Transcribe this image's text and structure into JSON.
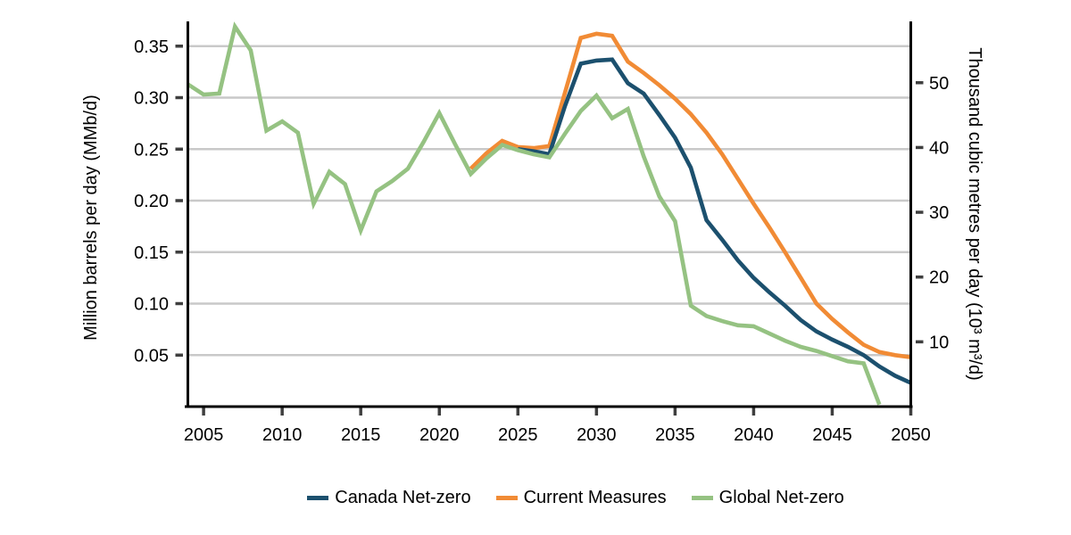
{
  "chart_data": {
    "type": "line",
    "title": "",
    "grid": "horizontal",
    "legend_position": "bottom",
    "x_axis": {
      "range": [
        2004,
        2050
      ],
      "tick_values": [
        2005,
        2010,
        2015,
        2020,
        2025,
        2030,
        2035,
        2040,
        2045,
        2050
      ],
      "tick_labels": [
        "2005",
        "2010",
        "2015",
        "2020",
        "2025",
        "2030",
        "2035",
        "2040",
        "2045",
        "2050"
      ]
    },
    "left_axis": {
      "label": "Million barrels per day (MMb/d)",
      "range": [
        0,
        0.374
      ],
      "tick_values": [
        0.35,
        0.3,
        0.25,
        0.2,
        0.15,
        0.1,
        0.05
      ],
      "tick_labels": [
        "0.35",
        "0.30",
        "0.25",
        "0.20",
        "0.15",
        "0.10",
        "0.05"
      ]
    },
    "right_axis": {
      "label": "Thousand cubic metres per day (10³ m³/d)",
      "tick_values": [
        50,
        40,
        30,
        20,
        10
      ],
      "tick_labels": [
        "50",
        "40",
        "30",
        "20",
        "10"
      ],
      "left_units_per_right_unit": 0.0062898
    },
    "series": [
      {
        "name": "Canada Net-zero",
        "color": "#1C506E",
        "x": [
          2025,
          2026,
          2027,
          2028,
          2029,
          2030,
          2031,
          2032,
          2033,
          2034,
          2035,
          2036,
          2037,
          2038,
          2039,
          2040,
          2041,
          2042,
          2043,
          2044,
          2045,
          2046,
          2047,
          2048,
          2049,
          2050
        ],
        "values": [
          0.25,
          0.248,
          0.245,
          0.292,
          0.333,
          0.336,
          0.337,
          0.314,
          0.304,
          0.283,
          0.261,
          0.232,
          0.181,
          0.162,
          0.142,
          0.125,
          0.111,
          0.098,
          0.084,
          0.073,
          0.065,
          0.058,
          0.05,
          0.039,
          0.03,
          0.023
        ]
      },
      {
        "name": "Current Measures",
        "color": "#F18B35",
        "x": [
          2022,
          2023,
          2024,
          2025,
          2026,
          2027,
          2028,
          2029,
          2030,
          2031,
          2032,
          2033,
          2034,
          2035,
          2036,
          2037,
          2038,
          2039,
          2040,
          2041,
          2042,
          2043,
          2044,
          2045,
          2046,
          2047,
          2048,
          2049,
          2050
        ],
        "values": [
          0.231,
          0.246,
          0.258,
          0.252,
          0.251,
          0.253,
          0.305,
          0.358,
          0.362,
          0.36,
          0.335,
          0.324,
          0.312,
          0.299,
          0.284,
          0.266,
          0.245,
          0.221,
          0.197,
          0.174,
          0.15,
          0.125,
          0.1,
          0.085,
          0.072,
          0.06,
          0.053,
          0.05,
          0.048
        ]
      },
      {
        "name": "Global Net-zero",
        "color": "#95C282",
        "x": [
          2004,
          2005,
          2006,
          2007,
          2008,
          2009,
          2010,
          2011,
          2012,
          2013,
          2014,
          2015,
          2016,
          2017,
          2018,
          2019,
          2020,
          2021,
          2022,
          2023,
          2024,
          2025,
          2026,
          2027,
          2028,
          2029,
          2030,
          2031,
          2032,
          2033,
          2034,
          2035,
          2036,
          2037,
          2038,
          2039,
          2040,
          2041,
          2042,
          2043,
          2044,
          2045,
          2046,
          2047,
          2048
        ],
        "values": [
          0.313,
          0.303,
          0.304,
          0.369,
          0.346,
          0.268,
          0.277,
          0.266,
          0.197,
          0.228,
          0.216,
          0.171,
          0.209,
          0.219,
          0.231,
          0.257,
          0.285,
          0.255,
          0.226,
          0.241,
          0.254,
          0.249,
          0.245,
          0.242,
          0.265,
          0.287,
          0.302,
          0.28,
          0.289,
          0.243,
          0.204,
          0.18,
          0.098,
          0.088,
          0.083,
          0.079,
          0.078,
          0.071,
          0.064,
          0.058,
          0.054,
          0.049,
          0.044,
          0.042,
          0.002
        ]
      }
    ]
  },
  "styles": {
    "background": "#FFFFFF",
    "grid_color": "#C9C9C9",
    "axis_color": "#000000",
    "tick_color": "#3F3F3F",
    "text_color": "#000000"
  }
}
